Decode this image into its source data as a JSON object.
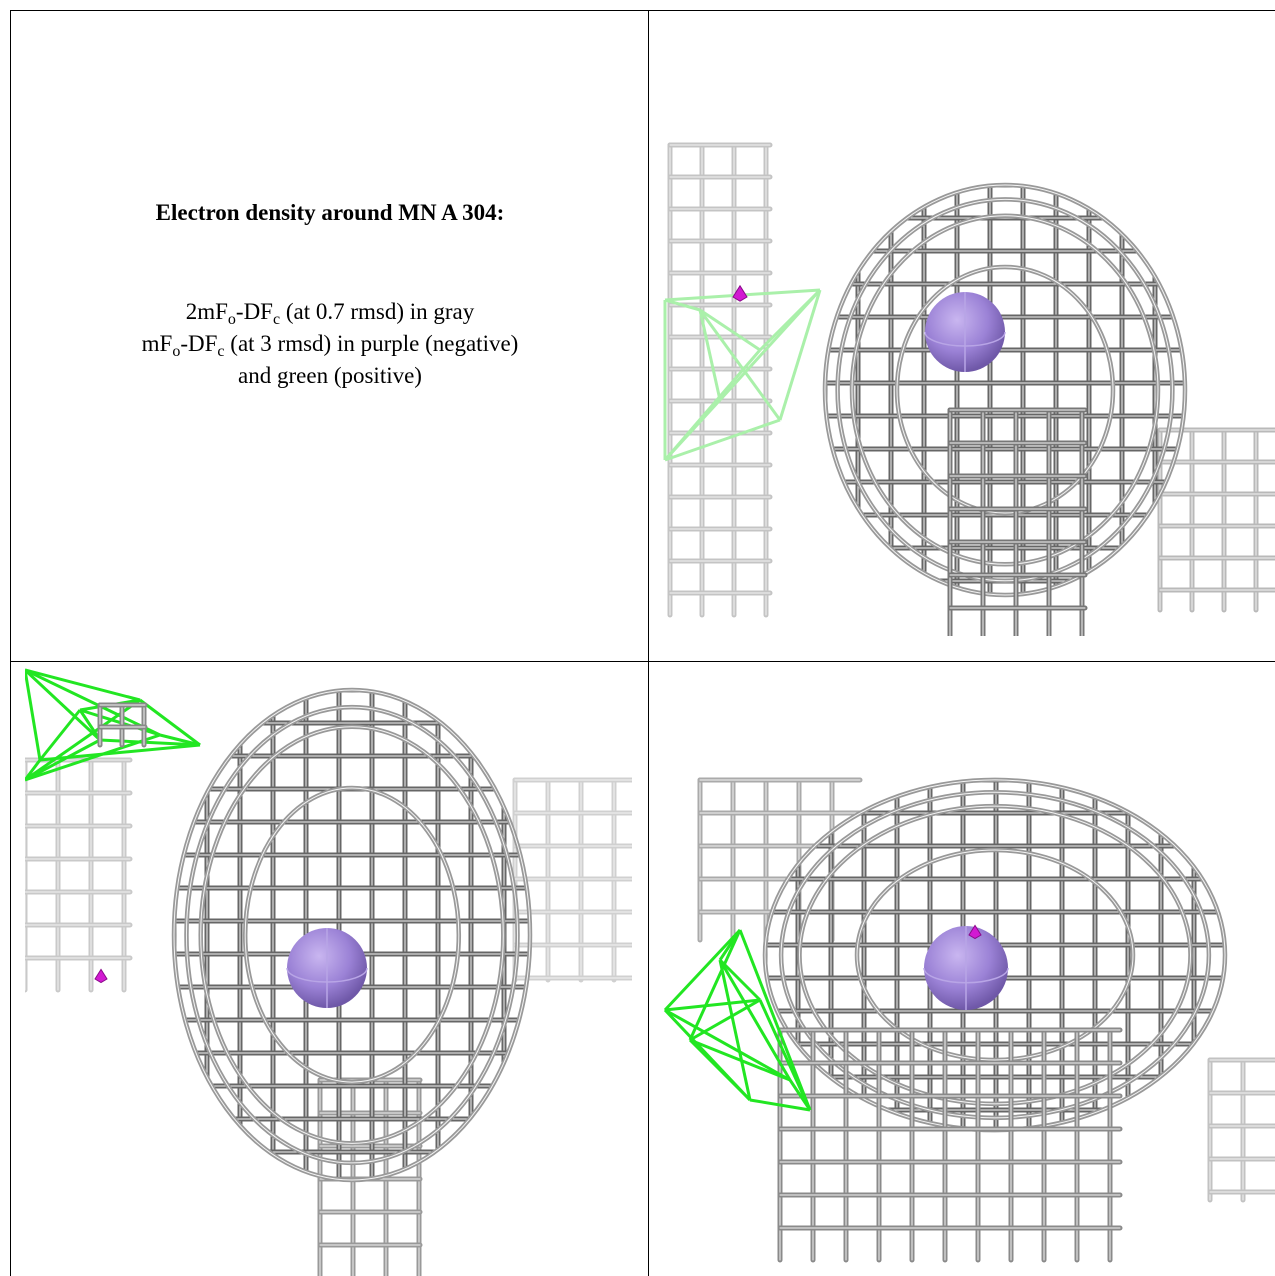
{
  "caption": {
    "title": "Electron density around MN A 304:",
    "lines": [
      [
        "2mF",
        "o",
        "-DF",
        "c",
        " (at 0.7 rmsd) in gray"
      ],
      [
        "mF",
        "o",
        "-DF",
        "c",
        " (at 3 rmsd) in purple (negative)"
      ],
      [
        "and green (positive)"
      ]
    ]
  }
}
